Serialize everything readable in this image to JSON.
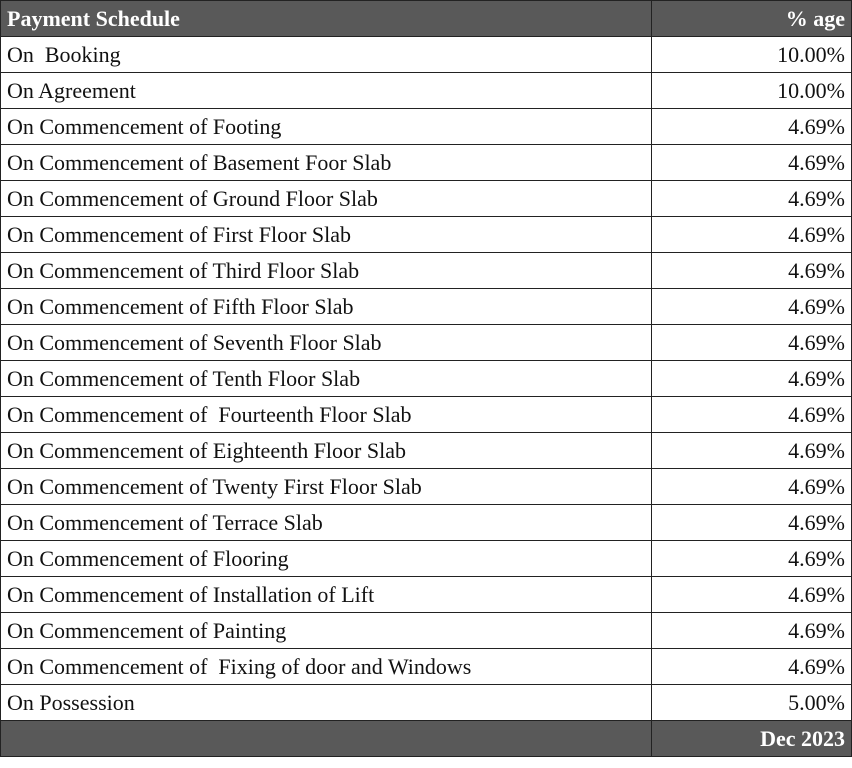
{
  "header": {
    "label": "Payment Schedule",
    "percent_label": "% age"
  },
  "rows": [
    {
      "stage": "On  Booking",
      "percent": "10.00%"
    },
    {
      "stage": "On Agreement",
      "percent": "10.00%"
    },
    {
      "stage": "On Commencement of Footing",
      "percent": "4.69%"
    },
    {
      "stage": "On Commencement of Basement Foor Slab",
      "percent": "4.69%"
    },
    {
      "stage": "On Commencement of Ground Floor Slab",
      "percent": "4.69%"
    },
    {
      "stage": "On Commencement of First Floor Slab",
      "percent": "4.69%"
    },
    {
      "stage": "On Commencement of Third Floor Slab",
      "percent": "4.69%"
    },
    {
      "stage": "On Commencement of Fifth Floor Slab",
      "percent": "4.69%"
    },
    {
      "stage": "On Commencement of Seventh Floor Slab",
      "percent": "4.69%"
    },
    {
      "stage": "On Commencement of Tenth Floor Slab",
      "percent": "4.69%"
    },
    {
      "stage": "On Commencement of  Fourteenth Floor Slab",
      "percent": "4.69%"
    },
    {
      "stage": "On Commencement of Eighteenth Floor Slab",
      "percent": "4.69%"
    },
    {
      "stage": "On Commencement of Twenty First Floor Slab",
      "percent": "4.69%"
    },
    {
      "stage": "On Commencement of Terrace Slab",
      "percent": "4.69%"
    },
    {
      "stage": "On Commencement of Flooring",
      "percent": "4.69%"
    },
    {
      "stage": "On Commencement of Installation of Lift",
      "percent": "4.69%"
    },
    {
      "stage": "On Commencement of Painting",
      "percent": "4.69%"
    },
    {
      "stage": "On Commencement of  Fixing of door and Windows",
      "percent": "4.69%"
    },
    {
      "stage": "On Possession",
      "percent": "5.00%"
    }
  ],
  "footer": {
    "label": "",
    "date": "Dec 2023"
  },
  "colors": {
    "header_bg": "#595959",
    "header_text": "#ffffff"
  }
}
